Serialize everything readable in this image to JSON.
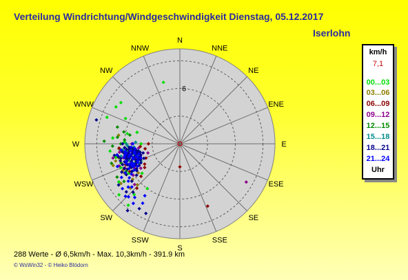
{
  "title": "Verteilung Windrichtung/Windgeschwindigkeit  Dienstag, 05.12.2017",
  "location": "Iserlohn",
  "legend": {
    "unit": "km/h",
    "max_value": "7,1",
    "max_color": "#cc0000",
    "entries": [
      {
        "label": "00...03",
        "color": "#00dd00"
      },
      {
        "label": "03...06",
        "color": "#8b7d00"
      },
      {
        "label": "06...09",
        "color": "#8b0000"
      },
      {
        "label": "09...12",
        "color": "#8b008b"
      },
      {
        "label": "12...15",
        "color": "#008b00"
      },
      {
        "label": "15...18",
        "color": "#008b8b"
      },
      {
        "label": "18...21",
        "color": "#00008b"
      },
      {
        "label": "21...24",
        "color": "#0000ff"
      }
    ],
    "footer": "Uhr"
  },
  "stats": "288 Werte   -   Ø 6,5km/h  -  Max. 10,3km/h  -   391.9 km",
  "credits": "© WsWin32   -   © Heiko Blödorn",
  "chart_data": {
    "type": "scatter",
    "subtype": "polar wind rose",
    "directions": [
      "N",
      "NNE",
      "NE",
      "ENE",
      "E",
      "ESE",
      "SE",
      "SSE",
      "S",
      "SSW",
      "SW",
      "WSW",
      "W",
      "WNW",
      "NW",
      "NNW"
    ],
    "rings": [
      3,
      6,
      9
    ],
    "ring_labels": [
      "6"
    ],
    "rmax": 10.3,
    "background": "#d3d3d3",
    "series": [
      {
        "color": "#00dd00",
        "points": [
          [
            262,
            6.2
          ],
          [
            265,
            5.5
          ],
          [
            275,
            7.3
          ],
          [
            290,
            8.4
          ],
          [
            305,
            7.8
          ],
          [
            272,
            6.0
          ],
          [
            250,
            6.6
          ],
          [
            258,
            7.1
          ],
          [
            285,
            4.8
          ],
          [
            240,
            6.4
          ],
          [
            222,
            7.4
          ],
          [
            216,
            6.0
          ],
          [
            232,
            5.2
          ],
          [
            248,
            6.9
          ],
          [
            230,
            8.6
          ],
          [
            281,
            5.8
          ],
          [
            264,
            7.6
          ],
          [
            295,
            6.5
          ],
          [
            238,
            7.8
          ],
          [
            256,
            5.0
          ],
          [
            300,
            8.0
          ],
          [
            270,
            4.2
          ],
          [
            220,
            8.7
          ],
          [
            345,
            6.9
          ]
        ]
      },
      {
        "color": "#8b7d00",
        "points": [
          [
            245,
            6.8
          ],
          [
            255,
            7.2
          ],
          [
            265,
            6.6
          ],
          [
            235,
            5.5
          ],
          [
            250,
            4.5
          ],
          [
            242,
            6.8
          ],
          [
            228,
            7.2
          ],
          [
            236,
            7.7
          ],
          [
            262,
            5.7
          ],
          [
            252,
            7.6
          ],
          [
            244,
            5.9
          ],
          [
            233,
            6.4
          ],
          [
            278,
            6.7
          ],
          [
            226,
            6.4
          ],
          [
            257,
            6.8
          ]
        ]
      },
      {
        "color": "#8b0000",
        "points": [
          [
            258,
            4.8
          ],
          [
            262,
            3.8
          ],
          [
            252,
            5.2
          ],
          [
            247,
            4.0
          ],
          [
            266,
            4.3
          ],
          [
            236,
            4.6
          ],
          [
            244,
            5.3
          ],
          [
            230,
            5.5
          ],
          [
            255,
            6.1
          ],
          [
            240,
            4.4
          ],
          [
            263,
            5.0
          ],
          [
            249,
            6.3
          ],
          [
            270,
            3.4
          ],
          [
            259,
            5.6
          ],
          [
            224,
            6.7
          ],
          [
            241,
            6.2
          ],
          [
            266,
            6.6
          ],
          [
            156,
            7.4
          ],
          [
            180,
            2.5
          ]
        ]
      },
      {
        "color": "#8b008b",
        "points": [
          [
            248,
            5.8
          ],
          [
            256,
            6.3
          ],
          [
            242,
            5.6
          ],
          [
            262,
            6.6
          ],
          [
            236,
            6.1
          ],
          [
            250,
            7.0
          ],
          [
            270,
            5.2
          ],
          [
            228,
            6.6
          ],
          [
            258,
            7.4
          ],
          [
            244,
            7.0
          ],
          [
            238,
            5.0
          ],
          [
            254,
            3.6
          ],
          [
            264,
            4.5
          ],
          [
            120,
            8.3
          ],
          [
            252,
            5.0
          ],
          [
            246,
            6.5
          ]
        ]
      },
      {
        "color": "#008b00",
        "points": [
          [
            268,
            7.3
          ],
          [
            274,
            6.0
          ],
          [
            260,
            6.9
          ],
          [
            280,
            5.5
          ],
          [
            254,
            7.7
          ],
          [
            264,
            5.3
          ],
          [
            242,
            7.7
          ],
          [
            272,
            8.2
          ],
          [
            248,
            5.1
          ],
          [
            258,
            6.0
          ],
          [
            285,
            7.0
          ],
          [
            236,
            7.3
          ],
          [
            276,
            6.8
          ],
          [
            252,
            6.7
          ],
          [
            262,
            4.9
          ],
          [
            270,
            6.4
          ],
          [
            243,
            6.5
          ],
          [
            282,
            6.2
          ]
        ]
      },
      {
        "color": "#008b8b",
        "points": [
          [
            256,
            5.5
          ],
          [
            262,
            5.8
          ],
          [
            250,
            6.2
          ],
          [
            268,
            5.7
          ],
          [
            244,
            4.9
          ],
          [
            258,
            5.1
          ],
          [
            264,
            6.2
          ],
          [
            248,
            5.5
          ],
          [
            272,
            4.8
          ],
          [
            254,
            4.8
          ],
          [
            240,
            5.9
          ],
          [
            260,
            4.5
          ],
          [
            252,
            5.8
          ],
          [
            266,
            5.0
          ],
          [
            246,
            4.6
          ],
          [
            258,
            6.5
          ],
          [
            270,
            5.8
          ]
        ]
      },
      {
        "color": "#00008b",
        "points": [
          [
            252,
            4.5
          ],
          [
            256,
            5.5
          ],
          [
            260,
            5.2
          ],
          [
            248,
            5.0
          ],
          [
            264,
            5.8
          ],
          [
            244,
            5.8
          ],
          [
            254,
            6.0
          ],
          [
            258,
            4.4
          ],
          [
            250,
            5.6
          ],
          [
            246,
            5.2
          ],
          [
            262,
            4.8
          ],
          [
            240,
            5.4
          ],
          [
            256,
            4.9
          ],
          [
            252,
            6.3
          ],
          [
            248,
            4.2
          ],
          [
            260,
            6.1
          ],
          [
            244,
            6.3
          ],
          [
            266,
            5.5
          ],
          [
            254,
            5.1
          ],
          [
            258,
            5.8
          ],
          [
            250,
            4.8
          ],
          [
            262,
            5.5
          ],
          [
            246,
            5.9
          ],
          [
            256,
            6.6
          ],
          [
            242,
            5.0
          ],
          [
            252,
            5.4
          ],
          [
            260,
            4.6
          ],
          [
            248,
            6.1
          ],
          [
            264,
            5.1
          ],
          [
            254,
            4.4
          ],
          [
            238,
            5.5
          ],
          [
            258,
            5.3
          ],
          [
            244,
            4.7
          ],
          [
            250,
            6.6
          ],
          [
            256,
            4.1
          ],
          [
            262,
            6.3
          ],
          [
            246,
            5.3
          ],
          [
            252,
            4.7
          ],
          [
            266,
            6.0
          ],
          [
            240,
            6.0
          ],
          [
            258,
            6.8
          ],
          [
            248,
            4.6
          ],
          [
            254,
            5.7
          ],
          [
            260,
            5.7
          ],
          [
            244,
            5.4
          ],
          [
            250,
            5.1
          ],
          [
            256,
            5.9
          ],
          [
            234,
            5.8
          ],
          [
            262,
            5.1
          ],
          [
            252,
            6.0
          ],
          [
            246,
            6.6
          ],
          [
            258,
            4.8
          ],
          [
            264,
            5.5
          ],
          [
            240,
            6.7
          ],
          [
            224,
            7.3
          ],
          [
            236,
            8.0
          ],
          [
            212,
            8.3
          ],
          [
            228,
            7.8
          ],
          [
            218,
            9.2
          ],
          [
            206,
            8.4
          ],
          [
            260,
            7.2
          ],
          [
            244,
            7.0
          ],
          [
            254,
            6.7
          ],
          [
            232,
            6.6
          ],
          [
            270,
            6.2
          ],
          [
            286,
            9.4
          ]
        ]
      },
      {
        "color": "#0000ff",
        "points": [
          [
            258,
            5.0
          ],
          [
            252,
            5.3
          ],
          [
            262,
            5.4
          ],
          [
            248,
            5.6
          ],
          [
            256,
            5.7
          ],
          [
            244,
            5.6
          ],
          [
            260,
            5.9
          ],
          [
            250,
            4.5
          ],
          [
            254,
            5.3
          ],
          [
            264,
            4.9
          ],
          [
            246,
            5.0
          ],
          [
            258,
            6.1
          ],
          [
            242,
            5.2
          ],
          [
            252,
            6.1
          ],
          [
            262,
            6.0
          ],
          [
            248,
            5.9
          ],
          [
            256,
            4.6
          ],
          [
            240,
            5.7
          ],
          [
            266,
            5.3
          ],
          [
            254,
            4.9
          ],
          [
            250,
            6.2
          ],
          [
            260,
            5.0
          ],
          [
            244,
            6.1
          ],
          [
            256,
            6.2
          ],
          [
            248,
            4.9
          ],
          [
            264,
            6.4
          ],
          [
            238,
            6.2
          ],
          [
            252,
            4.8
          ],
          [
            258,
            5.5
          ],
          [
            246,
            5.7
          ],
          [
            270,
            5.1
          ],
          [
            242,
            6.7
          ],
          [
            234,
            6.9
          ],
          [
            228,
            7.0
          ],
          [
            220,
            7.6
          ],
          [
            214,
            6.8
          ],
          [
            226,
            8.2
          ],
          [
            212,
            7.6
          ],
          [
            232,
            7.9
          ],
          [
            218,
            8.2
          ],
          [
            240,
            7.3
          ],
          [
            224,
            8.0
          ],
          [
            236,
            6.6
          ],
          [
            230,
            7.3
          ],
          [
            260,
            6.9
          ],
          [
            250,
            7.2
          ],
          [
            246,
            5.4
          ]
        ]
      }
    ]
  }
}
